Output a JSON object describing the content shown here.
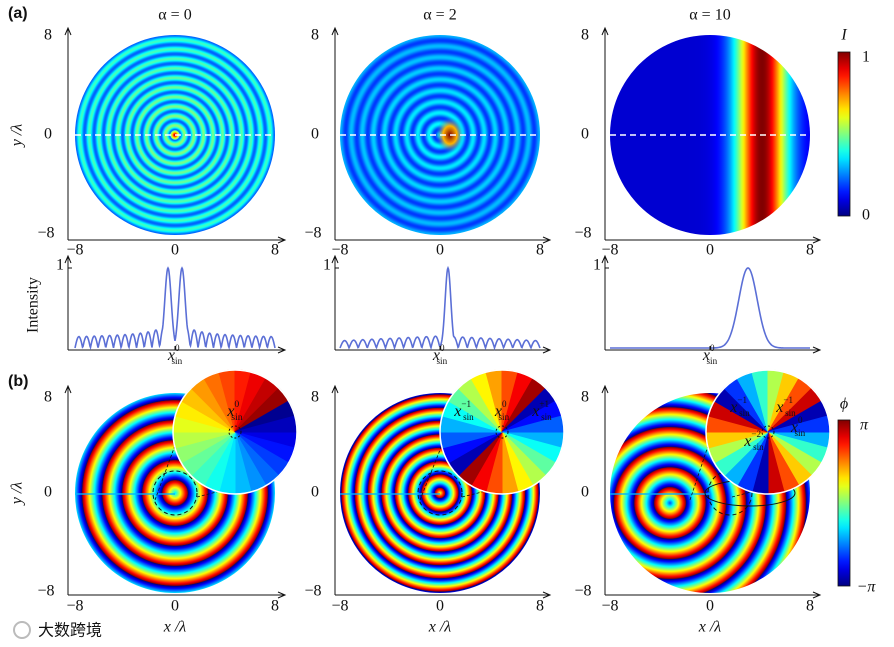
{
  "panel_labels": [
    "(a)",
    "(b)"
  ],
  "column_titles": [
    "α = 0",
    "α = 2",
    "α = 10"
  ],
  "axis_ticks": [
    "−8",
    "0",
    "8"
  ],
  "y_axis_label": "y /λ",
  "x_axis_label": "x /λ",
  "intensity_axis_label": "Intensity",
  "intensity_tick": "1",
  "marker": {
    "symbol": "x",
    "sub": "sin",
    "sups": [
      "0",
      "−1",
      "+1",
      "−2"
    ]
  },
  "colorbar_intensity": {
    "label": "I",
    "ticks": [
      "1",
      "0"
    ]
  },
  "colorbar_phase": {
    "label": "ϕ",
    "ticks": [
      "π",
      "−π"
    ]
  },
  "watermark": "大数跨境"
}
